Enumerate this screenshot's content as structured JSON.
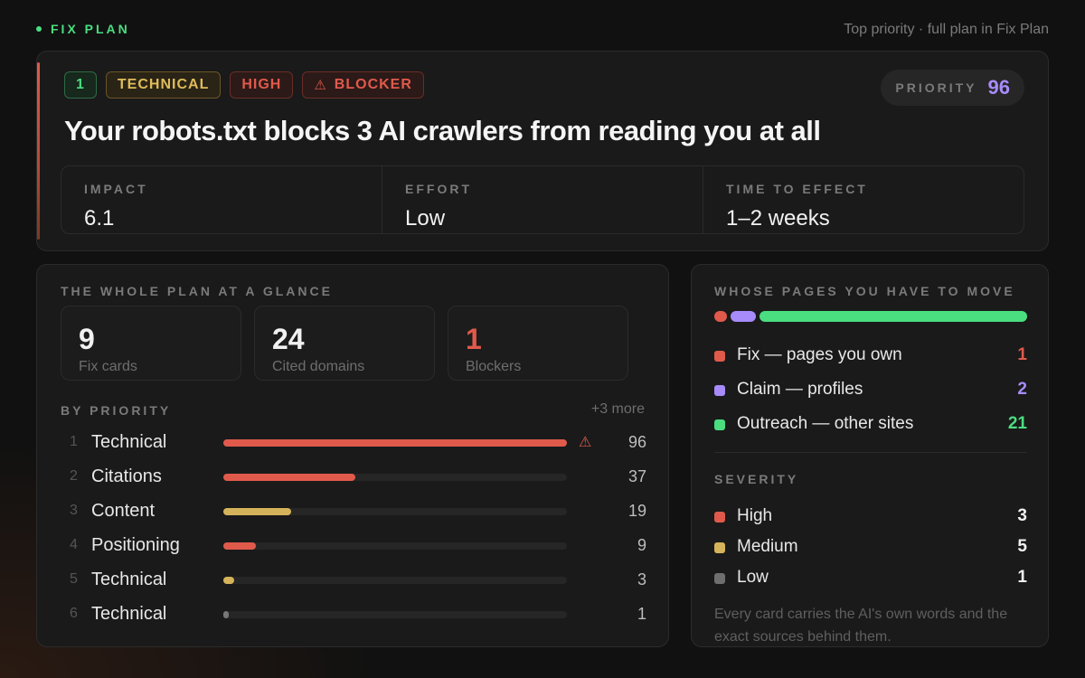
{
  "header": {
    "brand": "FIX PLAN",
    "note": "Top priority · full plan in Fix Plan"
  },
  "hero": {
    "tags": {
      "number": "1",
      "category": "TECHNICAL",
      "severity": "HIGH",
      "blocker": "BLOCKER"
    },
    "priority_label": "PRIORITY",
    "priority_value": "96",
    "title": "Your robots.txt blocks 3 AI crawlers from reading you at all",
    "metrics": [
      {
        "label": "IMPACT",
        "value": "6.1"
      },
      {
        "label": "EFFORT",
        "value": "Low"
      },
      {
        "label": "TIME TO EFFECT",
        "value": "1–2 weeks"
      }
    ]
  },
  "overview": {
    "title": "THE WHOLE PLAN AT A GLANCE",
    "stats": [
      {
        "value": "9",
        "label": "Fix cards"
      },
      {
        "value": "24",
        "label": "Cited domains"
      },
      {
        "value": "1",
        "label": "Blockers"
      }
    ],
    "by_priority_label": "BY PRIORITY",
    "more": "+3 more",
    "rows": [
      {
        "index": "1",
        "name": "Technical",
        "score": "96",
        "fraction": 1.0,
        "color": "#e05a4c",
        "blocker": true
      },
      {
        "index": "2",
        "name": "Citations",
        "score": "37",
        "fraction": 0.385,
        "color": "#e05a4c",
        "blocker": false
      },
      {
        "index": "3",
        "name": "Content",
        "score": "19",
        "fraction": 0.198,
        "color": "#d4b35a",
        "blocker": false
      },
      {
        "index": "4",
        "name": "Positioning",
        "score": "9",
        "fraction": 0.094,
        "color": "#e05a4c",
        "blocker": false
      },
      {
        "index": "5",
        "name": "Technical",
        "score": "3",
        "fraction": 0.031,
        "color": "#d4b35a",
        "blocker": false
      },
      {
        "index": "6",
        "name": "Technical",
        "score": "1",
        "fraction": 0.015,
        "color": "#777777",
        "blocker": false
      }
    ]
  },
  "owners": {
    "title": "WHOSE PAGES YOU HAVE TO MOVE",
    "items": [
      {
        "label": "Fix — pages you own",
        "value": "1",
        "count": 1,
        "color": "#e05a4c"
      },
      {
        "label": "Claim — profiles",
        "value": "2",
        "count": 2,
        "color": "#a78bfa"
      },
      {
        "label": "Outreach — other sites",
        "value": "21",
        "count": 21,
        "color": "#4ade80"
      }
    ],
    "severity_title": "SEVERITY",
    "severity": [
      {
        "label": "High",
        "value": "3",
        "color": "#e05a4c"
      },
      {
        "label": "Medium",
        "value": "5",
        "color": "#d4b35a"
      },
      {
        "label": "Low",
        "value": "1",
        "color": "#6e6e6e"
      }
    ],
    "footnote": "Every card carries the AI's own words and the exact sources behind them."
  }
}
